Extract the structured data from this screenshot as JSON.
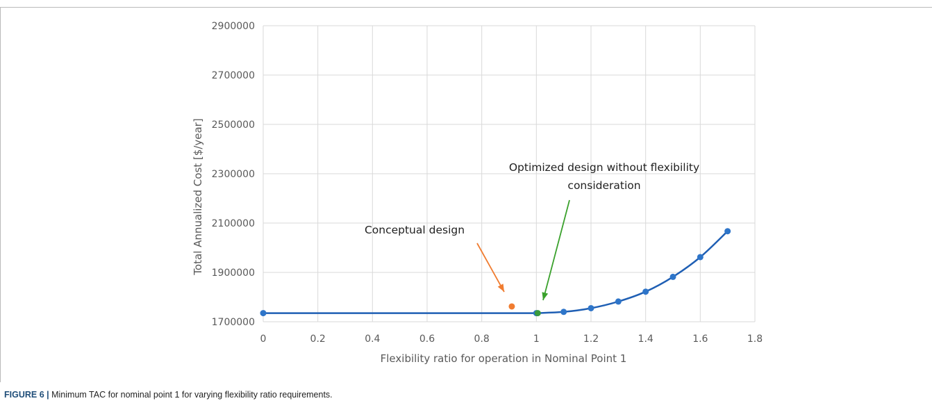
{
  "chart_data": {
    "type": "line",
    "xlabel": "Flexibility ratio for operation in Nominal Point 1",
    "ylabel": "Total Annualized Cost [$/year]",
    "xlim": [
      0,
      1.8
    ],
    "ylim": [
      1700000,
      2900000
    ],
    "x_ticks": [
      "0",
      "0.2",
      "0.4",
      "0.6",
      "0.8",
      "1",
      "1.2",
      "1.4",
      "1.6",
      "1.8"
    ],
    "y_ticks": [
      "1700000",
      "1900000",
      "2100000",
      "2300000",
      "2500000",
      "2700000",
      "2900000"
    ],
    "grid": true,
    "series": [
      {
        "x": [
          0,
          1.0,
          1.1,
          1.2,
          1.3,
          1.4,
          1.5,
          1.6,
          1.7
        ],
        "y": [
          1735000,
          1735000,
          1740000,
          1755000,
          1782000,
          1822000,
          1882000,
          1962000,
          2067000
        ],
        "color": "#1f5fb4",
        "marker_color": "#2e75c9"
      }
    ],
    "points": [
      {
        "x": 0.91,
        "y": 1762000,
        "color": "#f07c30"
      },
      {
        "x": 1.005,
        "y": 1735000,
        "color": "#3a9a3e"
      }
    ],
    "annotations": [
      {
        "lines": [
          "Conceptual design"
        ],
        "arrow_color": "#f07c30"
      },
      {
        "lines": [
          "Optimized design without flexibility",
          "consideration"
        ],
        "arrow_color": "#3aa12c"
      }
    ]
  },
  "caption": {
    "label": "FIGURE 6 |",
    "text": "Minimum TAC for nominal point 1 for varying flexibility ratio requirements."
  },
  "colors": {
    "grid": "#d9d9d9",
    "axis_text": "#595959",
    "caption_label": "#1f4e79"
  }
}
